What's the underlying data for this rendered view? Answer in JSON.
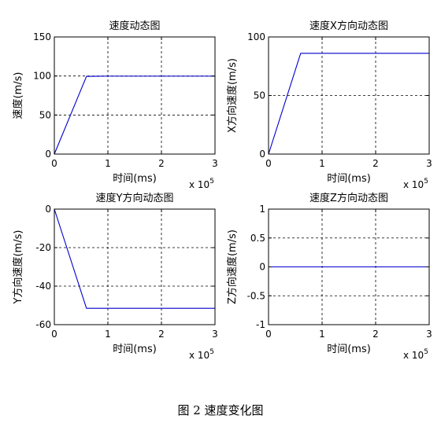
{
  "caption": "图 2 速度变化图",
  "chart_data": [
    {
      "type": "line",
      "title": "速度动态图",
      "xlabel": "时间(ms)",
      "ylabel": "速度(m/s)",
      "x_exponent_label": "x 10",
      "x_exponent_power": "5",
      "xlim": [
        0,
        3
      ],
      "ylim": [
        0,
        150
      ],
      "xticks": [
        0,
        1,
        2,
        3
      ],
      "yticks": [
        0,
        50,
        100,
        150
      ],
      "xtick_labels": [
        "0",
        "1",
        "2",
        "3"
      ],
      "ytick_labels": [
        "0",
        "50",
        "100",
        "150"
      ],
      "grid": true,
      "line_color": "#0000cc",
      "series": [
        {
          "x": [
            0,
            0.6,
            1.0,
            3.0
          ],
          "y": [
            0,
            99.5,
            99.8,
            99.8
          ]
        }
      ]
    },
    {
      "type": "line",
      "title": "速度X方向动态图",
      "xlabel": "时间(ms)",
      "ylabel": "X方向速度(m/s)",
      "x_exponent_label": "x 10",
      "x_exponent_power": "5",
      "xlim": [
        0,
        3
      ],
      "ylim": [
        0,
        100
      ],
      "xticks": [
        0,
        1,
        2,
        3
      ],
      "yticks": [
        0,
        50,
        100
      ],
      "xtick_labels": [
        "0",
        "1",
        "2",
        "3"
      ],
      "ytick_labels": [
        "0",
        "50",
        "100"
      ],
      "grid": true,
      "line_color": "#0000cc",
      "series": [
        {
          "x": [
            0,
            0.6,
            3.0
          ],
          "y": [
            0,
            86,
            86
          ]
        }
      ]
    },
    {
      "type": "line",
      "title": "速度Y方向动态图",
      "xlabel": "时间(ms)",
      "ylabel": "Y方向速度(m/s)",
      "x_exponent_label": "x 10",
      "x_exponent_power": "5",
      "xlim": [
        0,
        3
      ],
      "ylim": [
        -60,
        0
      ],
      "xticks": [
        0,
        1,
        2,
        3
      ],
      "yticks": [
        -60,
        -40,
        -20,
        0
      ],
      "xtick_labels": [
        "0",
        "1",
        "2",
        "3"
      ],
      "ytick_labels": [
        "-60",
        "-40",
        "-20",
        "0"
      ],
      "grid": true,
      "line_color": "#0000cc",
      "series": [
        {
          "x": [
            0,
            0.6,
            3.0
          ],
          "y": [
            0,
            -51.5,
            -51.5
          ]
        }
      ]
    },
    {
      "type": "line",
      "title": "速度Z方向动态图",
      "xlabel": "时间(ms)",
      "ylabel": "Z方向速度(m/s)",
      "x_exponent_label": "x 10",
      "x_exponent_power": "5",
      "xlim": [
        0,
        3
      ],
      "ylim": [
        -1,
        1
      ],
      "xticks": [
        0,
        1,
        2,
        3
      ],
      "yticks": [
        -1,
        -0.5,
        0,
        0.5,
        1
      ],
      "xtick_labels": [
        "0",
        "1",
        "2",
        "3"
      ],
      "ytick_labels": [
        "-1",
        "-0.5",
        "0",
        "0.5",
        "1"
      ],
      "grid": true,
      "line_color": "#0000cc",
      "series": [
        {
          "x": [
            0,
            3.0
          ],
          "y": [
            0,
            0
          ]
        }
      ]
    }
  ]
}
